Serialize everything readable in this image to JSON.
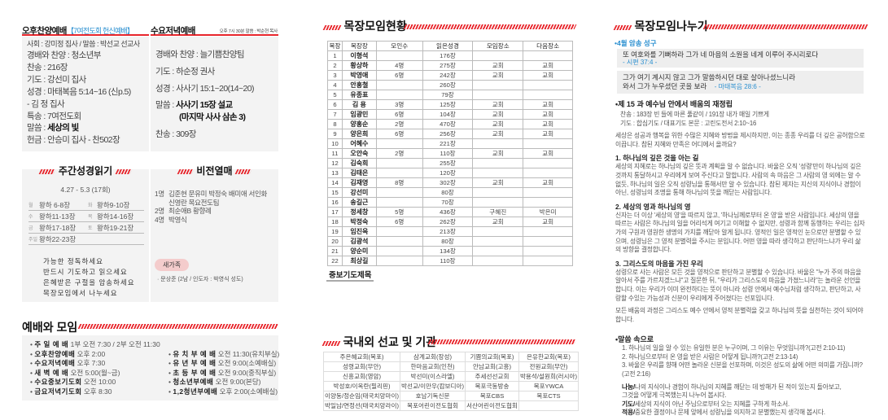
{
  "left": {
    "afternoon": {
      "title": "오후찬양예배",
      "subtitle": "【7여전도회 헌신예배】",
      "host": "사회 : 강미정 집사  /  말씀 : 박선교 선교사",
      "lines": [
        "경배와 찬양 : 청소년부",
        "찬송 : 216장",
        "기도 : 강선미 집사",
        "성경 : 마태복음 5:14~16 (신p.5)",
        "        - 김 정 집사",
        "특송 : 7여전도회"
      ],
      "sermon_label": "말씀 : ",
      "sermon": "세상의 빛",
      "offering": "헌금 : 안승미 집사 - 찬502장"
    },
    "wednesday": {
      "title": "수요저녁예배",
      "meta": "오후 7시 30분  말씀 : 박순현 목사",
      "lines": [
        "경배와 찬양 : 늘기쁨찬양팀",
        "기도 : 하순정 권사",
        "성경 : 사사기 15:1~20(14~20)"
      ],
      "sermon_label": "말씀 : ",
      "sermon1": "사사기 15장 설교",
      "sermon2": "(마지막 사사 삼손 3)",
      "hymn": "찬송 : 309장"
    },
    "reading": {
      "title": "주간성경읽기",
      "period": "4.27 - 5.3 (17회)",
      "rows": [
        [
          "월",
          "왕하 6-8장",
          "화",
          "왕하9-10장"
        ],
        [
          "수",
          "왕하11-13장",
          "목",
          "왕하14-16장"
        ],
        [
          "금",
          "왕하17-18장",
          "토",
          "왕하19-21장"
        ],
        [
          "주일",
          "왕하22-23장",
          "",
          ""
        ]
      ],
      "tips": [
        "가능한 정독하세요",
        "반드시 기도하고 읽으세요",
        "은혜받은 구절을 암송하세요",
        "목장모임에서 나누세요"
      ]
    },
    "vision": {
      "title": "비전열매",
      "items": [
        [
          "1명",
          "김준현 문유미 박정숙 배미애 서인화"
        ],
        [
          "",
          "신영란 목요전도팀"
        ],
        [
          "2명",
          "최순애B 황향례"
        ],
        [
          "4명",
          "박영식"
        ]
      ],
      "newfamily_badge": "새가족",
      "newfamily": "· 문상준 (2남 / 인도자 : 박영식 성도)"
    },
    "schedule": {
      "title": "예배와 모임",
      "left": [
        [
          "주 일 예 배",
          "1부 오전 7:30 / 2부 오전 11:30"
        ],
        [
          "오후찬양예배",
          "오후 2:00"
        ],
        [
          "수요저녁예배",
          "오후 7:30"
        ],
        [
          "새 벽 예 배",
          "오전 5:00(월~금)"
        ],
        [
          "수요중보기도회",
          "오전 10:00"
        ],
        [
          "금요저녁기도회",
          "오후 8:30"
        ]
      ],
      "right": [
        [
          "유 치 부 예 배",
          "오전 11:30(유치부실)"
        ],
        [
          "유 년 부 예 배",
          "오전 9:00(소예배실)"
        ],
        [
          "초 등 부 예 배",
          "오전 9:00(중직부실)"
        ],
        [
          "청소년부예배",
          "오전 9:00(본당)"
        ],
        [
          "1,2청년부예배",
          "오후 2:00(소예배실)"
        ]
      ]
    }
  },
  "middle": {
    "cell_title": "목장모임현황",
    "headers": [
      "목장",
      "목장장",
      "모인수",
      "읽은성경",
      "모임장소",
      "다음장소"
    ],
    "rows": [
      [
        "1",
        "이형석",
        "",
        "176장",
        "",
        ""
      ],
      [
        "2",
        "황상하",
        "4명",
        "275장",
        "교회",
        "교회"
      ],
      [
        "3",
        "박영애",
        "6명",
        "242장",
        "교회",
        "교회"
      ],
      [
        "4",
        "안홍철",
        "",
        "260장",
        "",
        ""
      ],
      [
        "5",
        "유종표",
        "",
        "79장",
        "",
        ""
      ],
      [
        "6",
        "김  용",
        "3명",
        "125장",
        "교회",
        "교회"
      ],
      [
        "7",
        "임광민",
        "6명",
        "104장",
        "교회",
        "교회"
      ],
      [
        "8",
        "양홍순",
        "2명",
        "470장",
        "교회",
        "교회"
      ],
      [
        "9",
        "양은희",
        "6명",
        "256장",
        "교회",
        "교회"
      ],
      [
        "10",
        "어혜수",
        "",
        "221장",
        "",
        ""
      ],
      [
        "11",
        "오안숙",
        "2명",
        "110장",
        "교회",
        "교회"
      ],
      [
        "12",
        "김숙희",
        "",
        "255장",
        "",
        ""
      ],
      [
        "13",
        "김태은",
        "",
        "120장",
        "",
        ""
      ],
      [
        "14",
        "김재영",
        "8명",
        "302장",
        "교회",
        "교회"
      ],
      [
        "15",
        "강선미",
        "",
        "80장",
        "",
        ""
      ],
      [
        "16",
        "송길근",
        "",
        "70장",
        "",
        ""
      ],
      [
        "17",
        "정세창",
        "5명",
        "436장",
        "구혜진",
        "박은미"
      ],
      [
        "18",
        "박정숙",
        "6명",
        "262장",
        "교회",
        "교회"
      ],
      [
        "19",
        "임진옥",
        "",
        "213장",
        "",
        ""
      ],
      [
        "20",
        "김광석",
        "",
        "80장",
        "",
        ""
      ],
      [
        "21",
        "양순미",
        "",
        "134장",
        "",
        ""
      ],
      [
        "22",
        "최상길",
        "",
        "110장",
        "",
        ""
      ]
    ],
    "prayer_title": "중보기도제목",
    "mission_title": "국내외 선교 및 기관",
    "mission": [
      [
        "주은혜교회(목포)",
        "삼계교회(장성)",
        "기쁨의교회(목포)",
        "은유한교회(목포)"
      ],
      [
        "성령교회(무안)",
        "한마음교회(인천)",
        "안남교회(고흥)",
        "전원교회(무안)"
      ],
      [
        "신흥교회(영암)",
        "박선미(이스라엘)",
        "주세선선교회",
        "박용석/설원희(러시아)"
      ],
      [
        "박성호/이옥란(필리핀)",
        "박선교/이만우(캄보디아)",
        "목포극동방송",
        "목포YWCA"
      ],
      [
        "이양동/정순임(태국치앙마이)",
        "호남기독신문",
        "목포CBS",
        "목포CTS"
      ],
      [
        "박일남/연정선(태국치앙라이)",
        "목포어린이전도협회",
        "서산어린이전도협회",
        ""
      ]
    ]
  },
  "right": {
    "title": "목장모임나누기",
    "memory_label": "•4월 암송 성구",
    "verse1": "또 여호와를 기뻐하라 그가 네 마음의 소원을 네게 이루어 주시리로다",
    "verse1_ref": "- 시편 37:4 -",
    "verse2a": "그가 여기 계시지 않고 그가 말씀하시던 대로 살아나셨느니라",
    "verse2b": "와서 그가 누우셨던 곳을 보라",
    "verse2_ref": "- 마태복음 28:6 -",
    "lesson_title": "•제 15 과 예수님 안에서 배움의 재정립",
    "hymn": "찬송 : 183장 빈 들에 마른 풀같이 / 191장 내가 매일 기쁘게",
    "prayer": "기도 : 합심기도 / 대표기도    본문 : 고린도전서 2:10~16",
    "intro": " 세상은 성공과 행복을 위한 수많은 지혜와 방법을 제시하지만, 이는 종종 우리를 더 깊은 공허함으로 이끕니다. 참된 지혜와 만족은 어디에서 올까요?",
    "points": [
      {
        "h": "1. 하나님의 깊은 것을 아는 길",
        "t": " 세상의 지혜로는 하나님의 깊은 뜻과 계획을 알 수 없습니다. 바울은 오직 '성령'만이 하나님의 깊은 것까지 통달하시고 우리에게 보여 주신다고 말합니다. 사람의 속 마음은 그 사람의 영 외에는 알 수 없듯, 하나님의 일은 오직 성령님을 통해서만 알 수 있습니다. 참된 제자는 지신의 지식이나 경험이 아닌, 성령님의 조명을 통해 하나님의 뜻을 깨닫는 사람입니다."
      },
      {
        "h": "2. 세상의 영과 하나님의 영",
        "t": "  신자는 더 이상 '세상의 영'을 따르지 않고, '하나님께로부터 온 영'을 받은 사람입니다. 세상의 영을 따르는 사람은 하나님의 일을 어리석게 여기고 이해할 수 없지만, 성령과 함께 동행하는 우리는 십자가의 구원과 영원한 생명의 가치를 깨닫아 알게 됩니다. 영적인 일은 영적인 눈으로만 분별할 수 있으며, 성령님은 그 영적 분별력을 주시는 분입니다. 어떤 영을 따라 생각하고 판단하느냐가 우리 삶의 방향을 결정합니다."
      },
      {
        "h": "3. 그리스도의 마음을 가진 우리",
        "t": " 성령으로 사는 사람은 모든 것을 영적으로 판단하고 분별할 수 있습니다. 바울은 \"누가 주의 마음을 알아서 주를 가르치겠느냐\"고 질문한 뒤, \"우리가 그리스도의 마음을 가졌느니라\"는 놀라운 선언을 합니다. 이는 우리가 이미 완전하다는 뜻이 아니라 성령 안에서 예수님처럼 생각하고, 판단하고, 사랑할 수있는 가능성과 신분이 우리에게 주어졌다는 선포입니다."
      }
    ],
    "conclusion": " 모든 배움의 과정은 그리스도 예수 안에서 영적 분별력을 갖고 하나님의 뜻을 실천하는 것이 되어야 합니다.",
    "word_title": "•말씀 속으로",
    "questions": [
      "1. 하나님의 일을 알 수 있는 유일한 분은 누구이며, 그 이유는 무엇입니까?(고전 2:10-11)",
      "2. 하나님으로부터 온 영을 받은 사람은 어떻게 됩니까?(고전 2:13-14)",
      "3. 바울은 우리를 향해 어떤 놀라운 신분을 선포하며, 이것은 성도의 삶에 어떤 의미를 가집니까?",
      "    (고전 2:16)"
    ],
    "apply": [
      [
        "나눔/",
        "나의 지식이나 경험이 하나님의 지혜를 깨닫는 데 방해가 된 적이 있는지 돌아보고,"
      ],
      [
        "",
        "        그것을 어떻게 극복했는지 나누어 봅시다."
      ],
      [
        "기도/",
        "세상의 지식이 아닌 주님으로부터 오는 지혜를 구하게 하소서."
      ],
      [
        "적용/",
        "중요한 결정이나 문제 앞에서 성령님을 의지하고 분별했는지 생각해 봅시다."
      ]
    ]
  },
  "colors": {
    "accent": "#e8262c",
    "blue": "#2a8fd0",
    "box": "#f3f3f3"
  }
}
